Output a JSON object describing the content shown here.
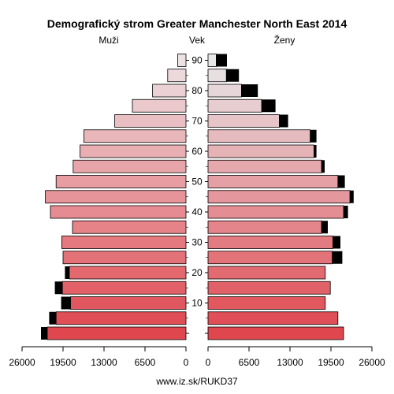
{
  "chart_data": {
    "type": "bar",
    "title": "Demografický strom Greater Manchester North East 2014",
    "left_label": "Muži",
    "center_label": "Vek",
    "right_label": "Ženy",
    "source": "www.iz.sk/RUKD37",
    "age_ticks": [
      "90",
      "80",
      "70",
      "60",
      "50",
      "40",
      "30",
      "20",
      "10",
      "0"
    ],
    "x_ticks_left": [
      "26000",
      "19500",
      "13000",
      "6500",
      "0"
    ],
    "x_ticks_right": [
      "0",
      "6500",
      "13000",
      "19500",
      "26000"
    ],
    "xlim": [
      0,
      26000
    ],
    "age_groups": [
      "0-4",
      "5-9",
      "10-14",
      "15-19",
      "20-24",
      "25-29",
      "30-34",
      "35-39",
      "40-44",
      "45-49",
      "50-54",
      "55-59",
      "60-64",
      "65-69",
      "70-74",
      "75-79",
      "80-84",
      "85-89",
      "90+"
    ],
    "series": [
      {
        "name": "Muži",
        "values": [
          22000,
          20600,
          18300,
          19600,
          18500,
          19500,
          19700,
          18000,
          21500,
          22300,
          20600,
          17900,
          16800,
          16200,
          11300,
          8500,
          5300,
          2900,
          1300
        ],
        "excess": [
          1000,
          1100,
          1500,
          1200,
          700,
          0,
          0,
          0,
          0,
          0,
          0,
          0,
          0,
          0,
          0,
          0,
          0,
          0,
          0
        ]
      },
      {
        "name": "Ženy",
        "values": [
          21500,
          20600,
          18600,
          19400,
          18600,
          19700,
          19800,
          18000,
          21500,
          22500,
          20600,
          18000,
          16800,
          16200,
          11300,
          8500,
          5300,
          2900,
          1300
        ],
        "excess": [
          0,
          0,
          0,
          0,
          0,
          1600,
          1200,
          1000,
          700,
          600,
          1100,
          500,
          400,
          1000,
          1400,
          2200,
          2600,
          2000,
          1700
        ]
      }
    ]
  }
}
